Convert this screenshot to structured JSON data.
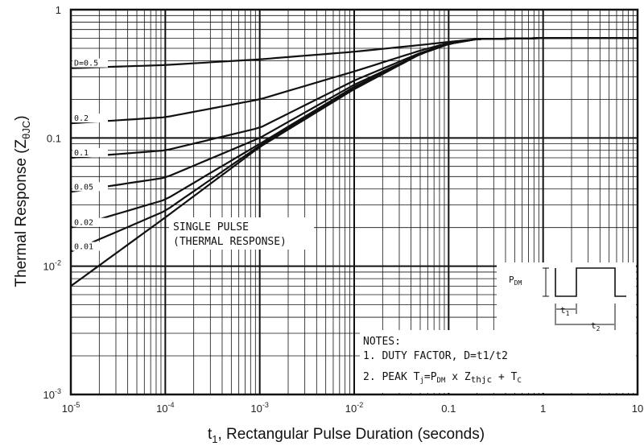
{
  "chart_data": {
    "type": "line",
    "scale": {
      "x": "log",
      "y": "log"
    },
    "xlim": [
      1e-05,
      10
    ],
    "ylim": [
      0.001,
      1
    ],
    "grid": true,
    "xlabel": {
      "main": "t",
      "sub": "1",
      "rest": ", Rectangular Pulse Duration (seconds)"
    },
    "ylabel": {
      "main": "Thermal Response (Z",
      "sub": "θJC",
      "rest": ")"
    },
    "x_ticks": [
      {
        "value": 1e-05,
        "base": "10",
        "exp": "-5"
      },
      {
        "value": 0.0001,
        "base": "10",
        "exp": "-4"
      },
      {
        "value": 0.001,
        "base": "10",
        "exp": "-3"
      },
      {
        "value": 0.01,
        "base": "10",
        "exp": "-2"
      },
      {
        "value": 0.1,
        "base": "0.1",
        "exp": ""
      },
      {
        "value": 1,
        "base": "1",
        "exp": ""
      },
      {
        "value": 10,
        "base": "10",
        "exp": ""
      }
    ],
    "y_ticks": [
      {
        "value": 1,
        "base": "1",
        "exp": ""
      },
      {
        "value": 0.1,
        "base": "0.1",
        "exp": ""
      },
      {
        "value": 0.01,
        "base": "10",
        "exp": "-2"
      },
      {
        "value": 0.001,
        "base": "10",
        "exp": "-3"
      }
    ],
    "series": [
      {
        "name": "D=0.5",
        "x": [
          1e-05,
          0.0001,
          0.001,
          0.01,
          0.05,
          0.1,
          0.2,
          1,
          10
        ],
        "y": [
          0.35,
          0.37,
          0.41,
          0.47,
          0.53,
          0.56,
          0.59,
          0.6,
          0.6
        ]
      },
      {
        "name": "0.2",
        "x": [
          1e-05,
          0.0001,
          0.001,
          0.01,
          0.05,
          0.1,
          0.2,
          1,
          10
        ],
        "y": [
          0.13,
          0.145,
          0.2,
          0.33,
          0.48,
          0.55,
          0.59,
          0.6,
          0.6
        ]
      },
      {
        "name": "0.1",
        "x": [
          1e-05,
          0.0001,
          0.001,
          0.01,
          0.05,
          0.1,
          0.2,
          1,
          10
        ],
        "y": [
          0.07,
          0.08,
          0.12,
          0.28,
          0.46,
          0.54,
          0.59,
          0.6,
          0.6
        ]
      },
      {
        "name": "0.05",
        "x": [
          1e-05,
          0.0001,
          0.001,
          0.01,
          0.05,
          0.1,
          0.2,
          1,
          10
        ],
        "y": [
          0.038,
          0.049,
          0.1,
          0.26,
          0.45,
          0.54,
          0.59,
          0.6,
          0.6
        ]
      },
      {
        "name": "0.02",
        "x": [
          1e-05,
          0.0001,
          0.001,
          0.01,
          0.05,
          0.1,
          0.2,
          1,
          10
        ],
        "y": [
          0.02,
          0.033,
          0.09,
          0.25,
          0.45,
          0.54,
          0.59,
          0.6,
          0.6
        ]
      },
      {
        "name": "0.01",
        "x": [
          1e-05,
          0.0001,
          0.001,
          0.01,
          0.05,
          0.1,
          0.2,
          1,
          10
        ],
        "y": [
          0.013,
          0.027,
          0.087,
          0.245,
          0.45,
          0.54,
          0.59,
          0.6,
          0.6
        ]
      },
      {
        "name": "SINGLE PULSE",
        "x": [
          1e-05,
          0.0001,
          0.001,
          0.01,
          0.05,
          0.1,
          0.2,
          1,
          10
        ],
        "y": [
          0.007,
          0.024,
          0.085,
          0.24,
          0.45,
          0.54,
          0.59,
          0.6,
          0.6
        ]
      }
    ],
    "annotations": {
      "single_pulse": [
        "SINGLE PULSE",
        "(THERMAL RESPONSE)"
      ],
      "notes_title": "NOTES:",
      "note1": "1. DUTY FACTOR, D=t1/t2",
      "note2": {
        "a": "2. PEAK T",
        "a_sub": "j",
        "b": "=P",
        "b_sub": "DM",
        "c": " x Z",
        "c_sub": "thjc",
        "d": " + T",
        "d_sub": "C"
      },
      "inset": {
        "pdm": "P",
        "pdm_sub": "DM",
        "t1": "t",
        "t1_sub": "1",
        "t2": "t",
        "t2_sub": "2"
      }
    }
  }
}
